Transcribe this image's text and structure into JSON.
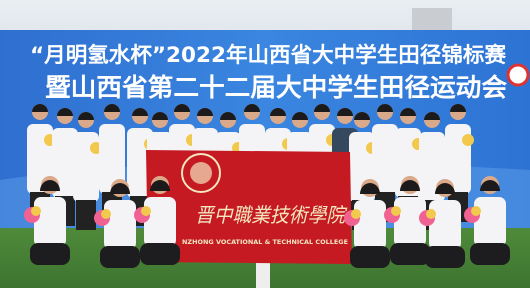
{
  "banner": {
    "line1": "“月明氢水杯”2022年山西省大中学生田径锦标赛",
    "line2": "暨山西省第二十二届大中学生田径运动会"
  },
  "flag": {
    "name_cn": "晋中職業技術學院",
    "name_en": "NZHONG VOCATIONAL & TECHNICAL COLLEGE"
  }
}
